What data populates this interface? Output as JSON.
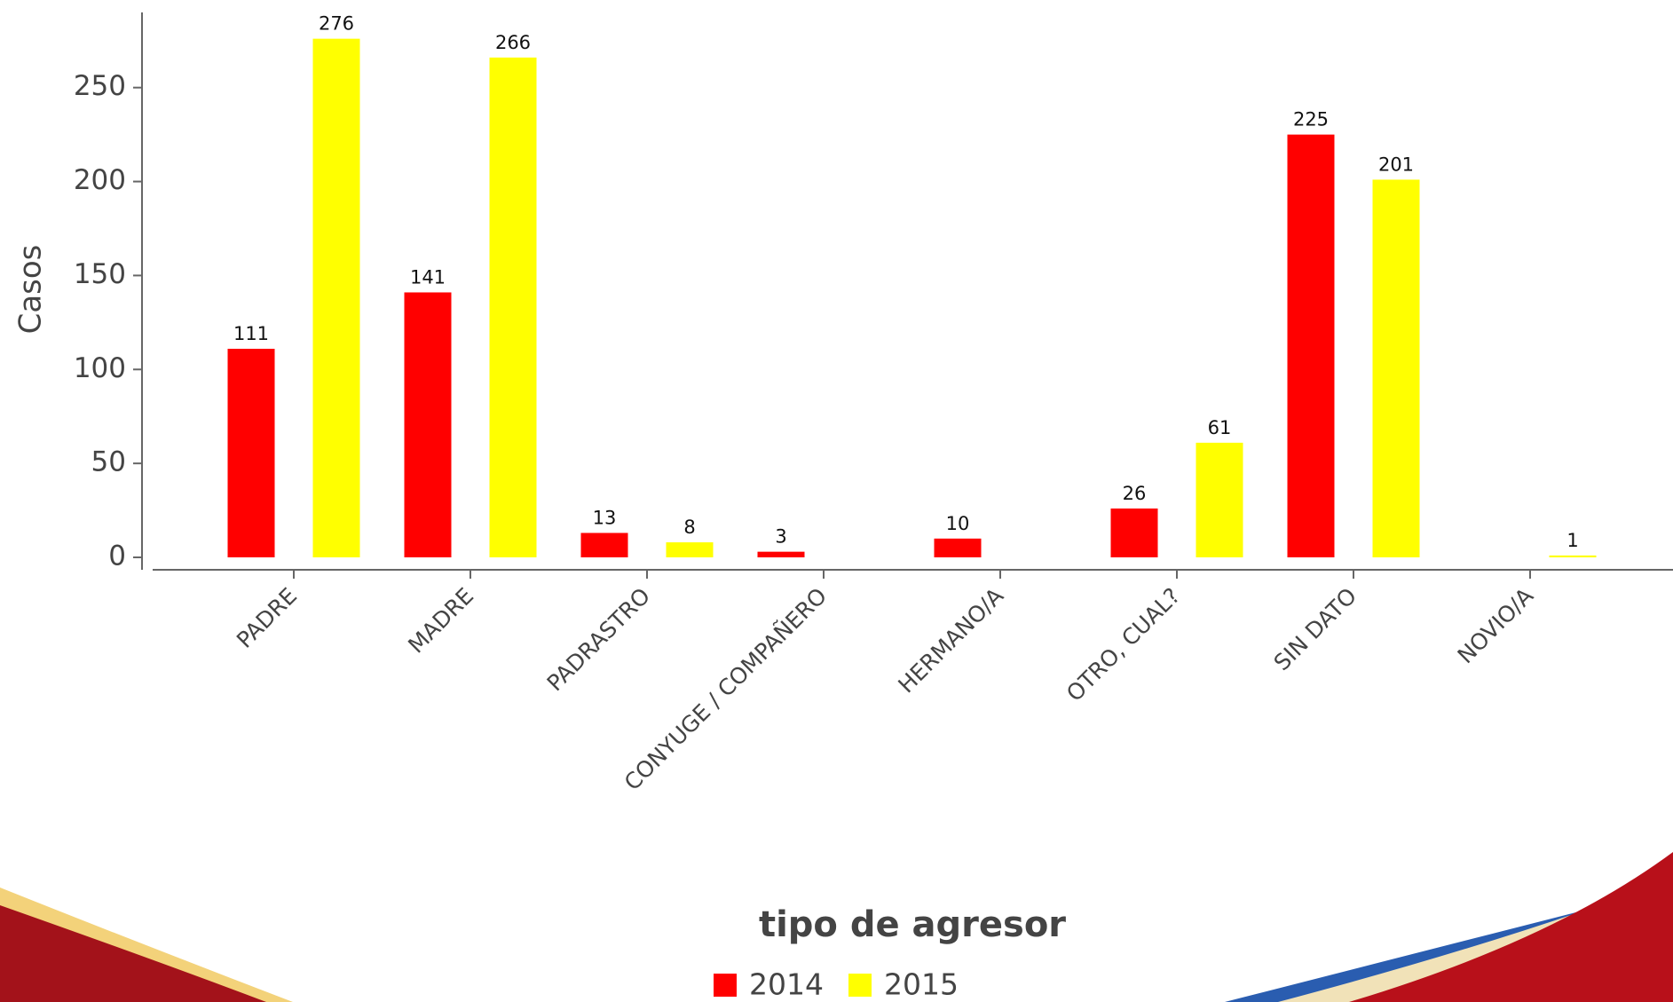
{
  "chart_data": {
    "type": "bar",
    "xlabel": "tipo de agresor",
    "ylabel": "Casos",
    "categories": [
      "PADRE",
      "MADRE",
      "PADRASTRO",
      "CONYUGE / COMPAÑERO",
      "HERMANO/A",
      "OTRO, CUAL?",
      "SIN DATO",
      "NOVIO/A"
    ],
    "series": [
      {
        "name": "2014",
        "color": "#ff0000",
        "values": [
          111,
          141,
          13,
          3,
          10,
          26,
          225,
          null
        ]
      },
      {
        "name": "2015",
        "color": "#ffff00",
        "values": [
          276,
          266,
          8,
          null,
          null,
          61,
          201,
          1
        ]
      }
    ],
    "ylim": [
      0,
      290
    ],
    "yticks": [
      0,
      50,
      100,
      150,
      200,
      250
    ]
  }
}
